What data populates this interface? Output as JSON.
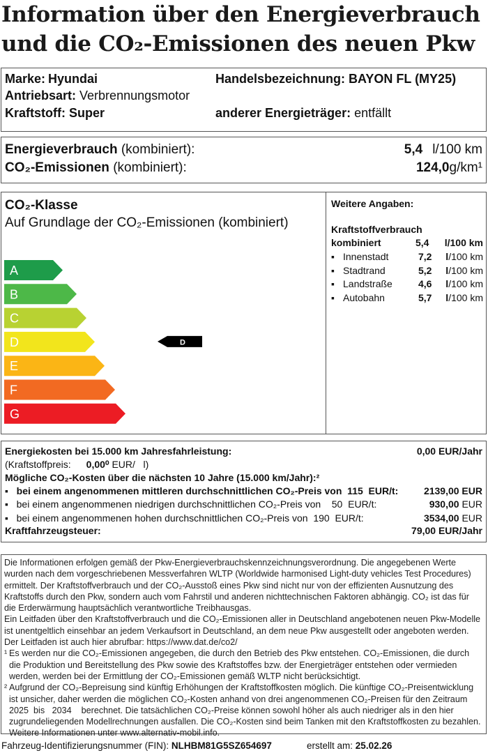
{
  "title": {
    "line1": "Information über den Energieverbrauch",
    "line2": "und die CO₂-Emissionen des neuen Pkw"
  },
  "vehicle": {
    "marke_label": "Marke:",
    "marke": "Hyundai",
    "handel_label": "Handelsbezeichnung:",
    "handel": "BAYON FL (MY25)",
    "antrieb_label": "Antriebsart:",
    "antrieb": "Verbrennungsmotor",
    "kraftstoff_label": "Kraftstoff:",
    "kraftstoff": "Super",
    "anderer_label": "anderer Energieträger:",
    "anderer": "entfällt"
  },
  "consumption": {
    "energie_label": "Energieverbrauch",
    "energie_suffix": "(kombiniert):",
    "energie_value": "5,4",
    "energie_unit": "l/100 km",
    "co2_label": "CO₂-Emissionen",
    "co2_suffix": "(kombiniert):",
    "co2_value": "124,0",
    "co2_unit": "g/km¹"
  },
  "co2_class": {
    "heading": "CO₂-Klasse",
    "subheading": "Auf Grundlage der CO₂-Emissionen (kombiniert)",
    "classes": [
      "A",
      "B",
      "C",
      "D",
      "E",
      "F",
      "G"
    ],
    "colors": [
      "#1e9c4a",
      "#4db848",
      "#b8d232",
      "#f2e51c",
      "#fbb515",
      "#f26a22",
      "#ec1c24"
    ],
    "current": "D"
  },
  "weitere": {
    "heading": "Weitere Angaben:",
    "kraftstoffverbrauch": "Kraftstoffverbrauch",
    "kombiniert_label": "kombiniert",
    "kombiniert_value": "5,4",
    "kombiniert_unit": "l/100 km",
    "items": [
      {
        "label": "Innenstadt",
        "value": "7,2",
        "unit": "l/100 km"
      },
      {
        "label": "Stadtrand",
        "value": "5,2",
        "unit": "l/100 km"
      },
      {
        "label": "Landstraße",
        "value": "4,6",
        "unit": "l/100 km"
      },
      {
        "label": "Autobahn",
        "value": "5,7",
        "unit": "l/100 km"
      }
    ]
  },
  "costs": {
    "energiekosten_label": "Energiekosten bei 15.000 km Jahresfahrleistung:",
    "energiekosten_value": "0,00 EUR/Jahr",
    "kraftstoffpreis_label": "(Kraftstoffpreis:",
    "kraftstoffpreis_value": "0,00⁰",
    "kraftstoffpreis_unit": "EUR/   l)",
    "co2kosten_label": "Mögliche CO₂-Kosten über die nächsten 10 Jahre (15.000 km/Jahr):²",
    "scenarios": [
      {
        "text": "bei einem angenommenen mittleren durchschnittlichen CO₂-Preis von  115  EUR/t:",
        "value": "2139,00 EUR",
        "bold": true
      },
      {
        "text": "bei einem angenommenen niedrigen durchschnittlichen CO₂-Preis von    50  EUR/t:",
        "value": "930,00",
        "unit": "EUR"
      },
      {
        "text": "bei einem angenommenen hohen durchschnittlichen CO₂-Preis von  190  EUR/t:",
        "value": "3534,00",
        "unit": "EUR"
      }
    ],
    "steuer_label": "Kraftfahrzeugsteuer:",
    "steuer_value": "79,00 EUR/Jahr"
  },
  "notes": {
    "p1": "Die Informationen erfolgen gemäß der Pkw-Energieverbrauchskennzeichnungsverordnung. Die angegebenen Werte wurden nach dem vorgeschriebenen Messverfahren WLTP (Worldwide harmonised Light-duty vehicles Test Procedures) ermittelt. Der Kraftstoffverbrauch und der CO₂-Ausstoß eines Pkw sind nicht nur von der effizienten Ausnutzung des Kraftstoffs durch den Pkw, sondern auch vom Fahrstil und anderen nichttechnischen Faktoren abhängig. CO₂ ist das für die Erderwärmung hauptsächlich verantwortliche Treibhausgas.",
    "p2": "Ein Leitfaden über den Kraftstoffverbrauch und die CO₂-Emissionen aller in Deutschland angebotenen neuen Pkw-Modelle ist unentgeltlich einsehbar an jedem Verkaufsort in Deutschland, an dem neue Pkw ausgestellt oder angeboten werden. Der Leitfaden ist auch hier abrufbar:   https://www.dat.de/co2/",
    "f1": "Es werden nur die CO₂-Emissionen angegeben, die durch den Betrieb des Pkw entstehen. CO₂-Emissionen, die durch die Produktion und Bereitstellung des Pkw sowie des Kraftstoffes bzw. der Energieträger entstehen oder vermieden werden, werden bei der Ermittlung der CO₂-Emissionen gemäß WLTP nicht berücksichtigt.",
    "f2": "Aufgrund der CO₂-Bepreisung sind künftig Erhöhungen der Kraftstoffkosten möglich. Die künftige CO₂-Preisentwicklung ist unsicher, daher werden die möglichen CO₂-Kosten anhand von drei angenommenen CO₂-Preisen für den Zeitraum  2025  bis   2034    berechnet. Die tatsächlichen CO₂-Preise können sowohl höher als auch niedriger als in den hier zugrundeliegenden Modellrechnungen ausfallen. Die CO₂-Kosten sind beim Tanken mit den Kraftstoffkosten zu bezahlen. Weitere Informationen unter www.alternativ-mobil.info.",
    "m1": "¹",
    "m2": "²"
  },
  "footer": {
    "fin_label": "Fahrzeug-Identifizierungsnummer (FIN):",
    "fin": "NLHBM81G5SZ654697",
    "erstellt_label": "erstellt am:",
    "erstellt": "25.02.26"
  }
}
